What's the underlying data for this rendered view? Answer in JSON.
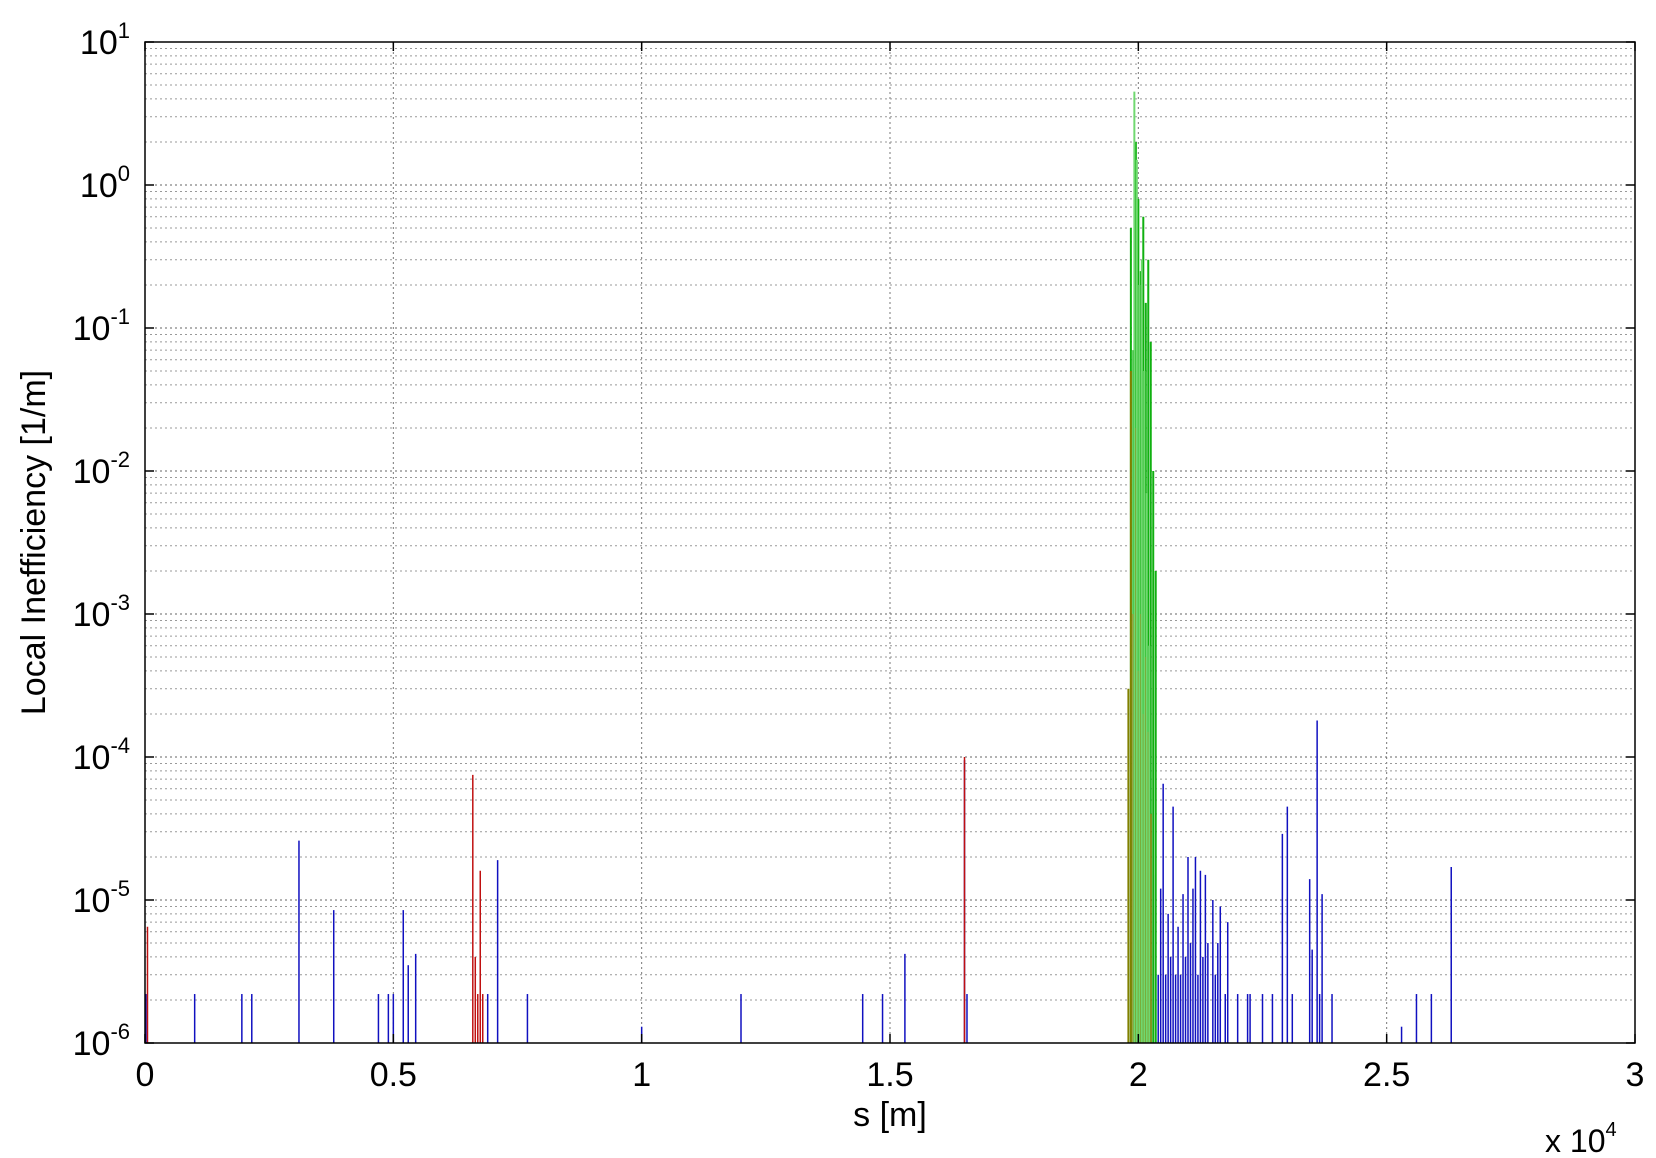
{
  "chart_data": {
    "type": "bar",
    "title": "",
    "xlabel": "s [m]",
    "ylabel": "Local Inefficiency [1/m]",
    "x_multiplier_label": "x 10",
    "x_multiplier_exp": "4",
    "xlim": [
      0,
      3
    ],
    "ylim": [
      1e-06,
      10
    ],
    "yscale": "log",
    "grid": true,
    "x_ticks": [
      {
        "value": 0,
        "label": "0"
      },
      {
        "value": 0.5,
        "label": "0.5"
      },
      {
        "value": 1,
        "label": "1"
      },
      {
        "value": 1.5,
        "label": "1.5"
      },
      {
        "value": 2,
        "label": "2"
      },
      {
        "value": 2.5,
        "label": "2.5"
      },
      {
        "value": 3,
        "label": "3"
      }
    ],
    "y_ticks": [
      {
        "value": 10,
        "base": "10",
        "exp": "1"
      },
      {
        "value": 1,
        "base": "10",
        "exp": "0"
      },
      {
        "value": 0.1,
        "base": "10",
        "exp": "-1"
      },
      {
        "value": 0.01,
        "base": "10",
        "exp": "-2"
      },
      {
        "value": 0.001,
        "base": "10",
        "exp": "-3"
      },
      {
        "value": 0.0001,
        "base": "10",
        "exp": "-4"
      },
      {
        "value": 1e-05,
        "base": "10",
        "exp": "-5"
      },
      {
        "value": 1e-06,
        "base": "10",
        "exp": "-6"
      }
    ],
    "series": [
      {
        "color": "#1010c0",
        "values": [
          [
            0.002,
            2.2e-06
          ],
          [
            0.1,
            2.2e-06
          ],
          [
            0.195,
            2.2e-06
          ],
          [
            0.215,
            2.2e-06
          ],
          [
            0.31,
            2.6e-05
          ],
          [
            0.38,
            8.5e-06
          ],
          [
            0.47,
            2.2e-06
          ],
          [
            0.49,
            2.2e-06
          ],
          [
            0.5,
            2.2e-06
          ],
          [
            0.52,
            8.5e-06
          ],
          [
            0.53,
            3.5e-06
          ],
          [
            0.545,
            4.2e-06
          ],
          [
            0.69,
            2.2e-06
          ],
          [
            0.71,
            1.9e-05
          ],
          [
            0.77,
            2.2e-06
          ],
          [
            1.0,
            1.3e-06
          ],
          [
            1.2,
            2.2e-06
          ],
          [
            1.445,
            2.2e-06
          ],
          [
            1.485,
            2.2e-06
          ],
          [
            1.53,
            4.2e-06
          ],
          [
            1.65,
            9.5e-05
          ],
          [
            1.655,
            2.2e-06
          ],
          [
            2.0,
            2.2e-06
          ],
          [
            2.005,
            3e-06
          ],
          [
            2.01,
            8e-06
          ],
          [
            2.015,
            4.5e-06
          ],
          [
            2.02,
            2e-05
          ],
          [
            2.025,
            4.5e-05
          ],
          [
            2.03,
            6.5e-06
          ],
          [
            2.035,
            1.5e-05
          ],
          [
            2.04,
            3e-06
          ],
          [
            2.045,
            1.2e-05
          ],
          [
            2.05,
            6.5e-05
          ],
          [
            2.055,
            3e-06
          ],
          [
            2.06,
            8e-06
          ],
          [
            2.065,
            4e-06
          ],
          [
            2.07,
            4.5e-05
          ],
          [
            2.075,
            3e-06
          ],
          [
            2.08,
            6.5e-06
          ],
          [
            2.085,
            3e-06
          ],
          [
            2.09,
            1.1e-05
          ],
          [
            2.095,
            4e-06
          ],
          [
            2.1,
            2e-05
          ],
          [
            2.105,
            5e-06
          ],
          [
            2.11,
            1.2e-05
          ],
          [
            2.115,
            2e-05
          ],
          [
            2.12,
            3e-06
          ],
          [
            2.125,
            1.6e-05
          ],
          [
            2.13,
            4e-06
          ],
          [
            2.135,
            1.5e-05
          ],
          [
            2.14,
            5e-06
          ],
          [
            2.15,
            1e-05
          ],
          [
            2.155,
            3e-06
          ],
          [
            2.16,
            5e-06
          ],
          [
            2.165,
            9e-06
          ],
          [
            2.175,
            2.2e-06
          ],
          [
            2.18,
            7e-06
          ],
          [
            2.2,
            2.2e-06
          ],
          [
            2.22,
            2.2e-06
          ],
          [
            2.225,
            2.2e-06
          ],
          [
            2.25,
            2.2e-06
          ],
          [
            2.27,
            2.2e-06
          ],
          [
            2.29,
            2.9e-05
          ],
          [
            2.3,
            4.5e-05
          ],
          [
            2.31,
            2.2e-06
          ],
          [
            2.345,
            1.4e-05
          ],
          [
            2.35,
            4.5e-06
          ],
          [
            2.36,
            0.00018
          ],
          [
            2.365,
            2.2e-06
          ],
          [
            2.37,
            1.1e-05
          ],
          [
            2.39,
            2.2e-06
          ],
          [
            2.53,
            1.3e-06
          ],
          [
            2.56,
            2.2e-06
          ],
          [
            2.59,
            2.2e-06
          ],
          [
            2.63,
            1.7e-05
          ]
        ]
      },
      {
        "color": "#c01010",
        "values": [
          [
            0.005,
            6.5e-06
          ],
          [
            0.66,
            7.5e-05
          ],
          [
            0.665,
            4e-06
          ],
          [
            0.67,
            2.2e-06
          ],
          [
            0.675,
            1.6e-05
          ],
          [
            0.68,
            2.2e-06
          ],
          [
            1.65,
            0.0001
          ],
          [
            1.99,
            0.0006
          ],
          [
            1.995,
            0.09
          ],
          [
            2.0,
            0.002
          ],
          [
            2.005,
            0.0004
          ],
          [
            2.01,
            0.0012
          ],
          [
            2.015,
            0.0003
          ],
          [
            2.02,
            0.002
          ],
          [
            2.025,
            0.0028
          ],
          [
            2.03,
            0.0009
          ]
        ]
      },
      {
        "color": "#10b010",
        "values": [
          [
            1.985,
            0.5
          ],
          [
            1.99,
            0.07
          ],
          [
            1.995,
            2.0
          ],
          [
            2.0,
            0.8
          ],
          [
            2.005,
            0.25
          ],
          [
            2.01,
            0.6
          ],
          [
            2.015,
            0.15
          ],
          [
            2.02,
            0.3
          ],
          [
            2.025,
            0.08
          ],
          [
            2.03,
            0.01
          ],
          [
            2.035,
            0.002
          ]
        ]
      },
      {
        "color": "#808000",
        "values": [
          [
            1.98,
            0.0003
          ],
          [
            1.985,
            0.05
          ],
          [
            1.99,
            0.001
          ],
          [
            1.995,
            0.02
          ],
          [
            2.0,
            0.0004
          ],
          [
            2.005,
            0.001
          ],
          [
            2.01,
            0.0002
          ],
          [
            2.015,
            0.0005
          ],
          [
            2.02,
            0.00015
          ],
          [
            2.025,
            4e-05
          ]
        ]
      },
      {
        "color": "#70d870",
        "values": [
          [
            1.992,
            4.5
          ],
          [
            1.997,
            1.5
          ],
          [
            2.002,
            0.2
          ],
          [
            2.007,
            0.3
          ],
          [
            2.012,
            0.05
          ],
          [
            2.017,
            0.007
          ],
          [
            2.022,
            0.0006
          ]
        ]
      }
    ]
  }
}
